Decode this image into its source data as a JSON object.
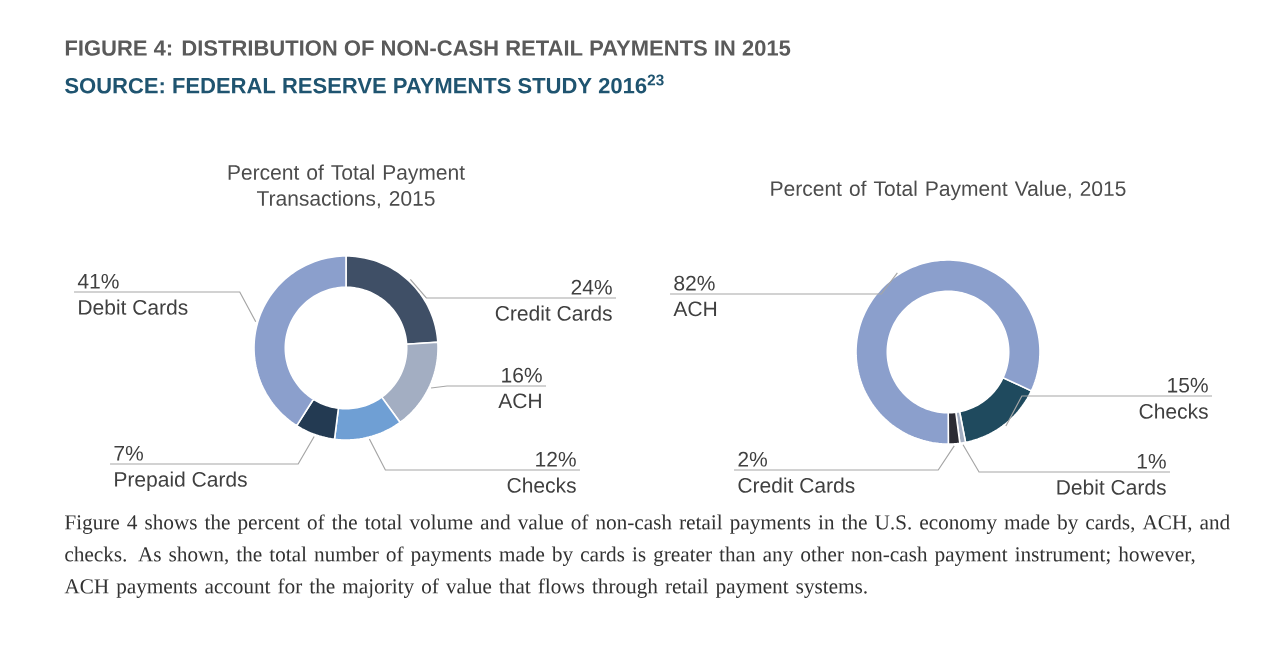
{
  "chart_data": [
    {
      "type": "donut",
      "title": "Percent of Total Payment Transactions, 2015",
      "categories": [
        "Credit Cards",
        "ACH",
        "Checks",
        "Prepaid Cards",
        "Debit Cards"
      ],
      "values": [
        24,
        16,
        12,
        7,
        41
      ],
      "value_labels": [
        "24%",
        "16%",
        "12%",
        "7%",
        "41%"
      ],
      "colors": [
        "#3f4f66",
        "#a3aec2",
        "#6f9fd4",
        "#233a52",
        "#8b9fcc"
      ],
      "annotations": [
        "FIGURE 4: DISTRIBUTION OF NON-CASH RETAIL PAYMENTS IN 2015",
        "SOURCE: FEDERAL RESERVE PAYMENTS STUDY 2016$^{23}$",
        "Figure 4 shows the percent of the total volume and value of non-cash retail payments in the U.S. economy made by cards, ACH, and checks. As shown, the total number of payments made by cards is greater than any other non-cash payment instrument; however, ACH payments account for the majority of value that flows through retail payment systems."
      ]
    },
    {
      "type": "donut",
      "title": "Percent of Total Payment Value, 2015",
      "categories": [
        "Checks",
        "Debit Cards",
        "Credit Cards",
        "ACH"
      ],
      "values": [
        15,
        1,
        2,
        82
      ],
      "value_labels": [
        "15%",
        "1%",
        "2%",
        "82%"
      ],
      "colors": [
        "#1f4a5e",
        "#a3aec2",
        "#2b2b33",
        "#8b9fcc"
      ]
    }
  ]
}
